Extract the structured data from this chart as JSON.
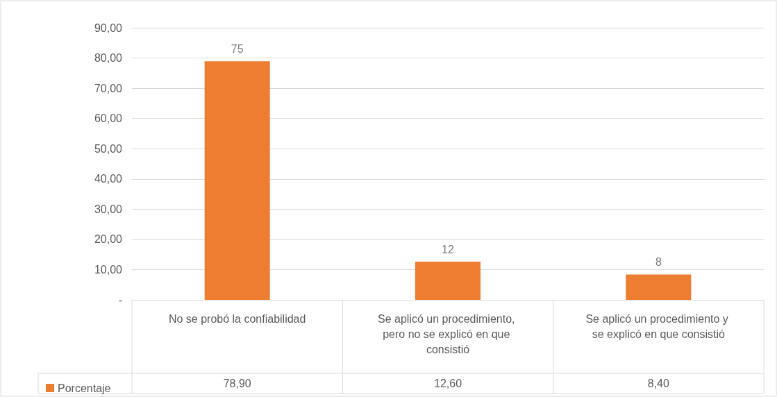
{
  "chart_data": {
    "type": "bar",
    "categories": [
      "No se probó la confiabilidad",
      "Se aplicó un procedimiento, pero no se explicó en que consistió",
      "Se aplicó un procedimiento y se explicó en que consistió"
    ],
    "series": [
      {
        "name": "Porcentaje",
        "color": "#ed7d31",
        "values": [
          78.9,
          12.6,
          8.4
        ],
        "value_labels": [
          "78,90",
          "12,60",
          "8,40"
        ]
      }
    ],
    "annotations": [
      {
        "text": "75",
        "x": "No se probó la confiabilidad",
        "y": 78.9
      },
      {
        "text": "12",
        "x": "Se aplicó un procedimiento, pero no se explicó en que consistió",
        "y": 12.6
      },
      {
        "text": "8",
        "x": "Se aplicó un procedimiento y se explicó en que consistió",
        "y": 8.4
      }
    ],
    "ylim": [
      0,
      90
    ],
    "yticks": [
      {
        "value": 0,
        "label": "-"
      },
      {
        "value": 10,
        "label": "10,00"
      },
      {
        "value": 20,
        "label": "20,00"
      },
      {
        "value": 30,
        "label": "30,00"
      },
      {
        "value": 40,
        "label": "40,00"
      },
      {
        "value": 50,
        "label": "50,00"
      },
      {
        "value": 60,
        "label": "60,00"
      },
      {
        "value": 70,
        "label": "70,00"
      },
      {
        "value": 80,
        "label": "80,00"
      },
      {
        "value": 90,
        "label": "90,00"
      }
    ],
    "grid": "y",
    "legend": "bottom left"
  }
}
